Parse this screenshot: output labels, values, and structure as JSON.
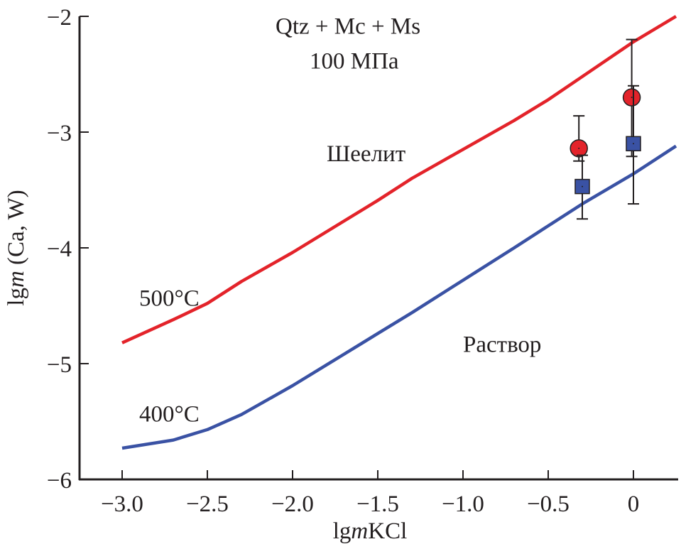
{
  "chart_data": {
    "type": "line",
    "title": "",
    "xlabel_parts": [
      "lg",
      "m",
      "KCl"
    ],
    "ylabel_parts": [
      "lg",
      "m",
      " (Ca, W)"
    ],
    "xlim": [
      -3.25,
      0.25
    ],
    "ylim": [
      -6,
      -2
    ],
    "x_ticks": [
      -3.0,
      -2.5,
      -2.0,
      -1.5,
      -1.0,
      -0.5,
      0
    ],
    "x_tick_labels": [
      "−3.0",
      "−2.5",
      "−2.0",
      "−1.5",
      "−1.0",
      "−0.5",
      "0"
    ],
    "y_ticks": [
      -2,
      -3,
      -4,
      -5,
      -6
    ],
    "y_tick_labels": [
      "−2",
      "−3",
      "−4",
      "−5",
      "−6"
    ],
    "grid": false,
    "series": [
      {
        "name": "500°C",
        "color": "#e3232a",
        "x": [
          -3.0,
          -2.7,
          -2.5,
          -2.3,
          -2.0,
          -1.7,
          -1.5,
          -1.3,
          -1.0,
          -0.7,
          -0.5,
          -0.3,
          0.0,
          0.25
        ],
        "y": [
          -4.82,
          -4.62,
          -4.48,
          -4.29,
          -4.04,
          -3.77,
          -3.59,
          -3.4,
          -3.15,
          -2.9,
          -2.72,
          -2.52,
          -2.22,
          -2.0
        ]
      },
      {
        "name": "400°C",
        "color": "#3a52a4",
        "x": [
          -3.0,
          -2.7,
          -2.5,
          -2.3,
          -2.0,
          -1.7,
          -1.5,
          -1.3,
          -1.0,
          -0.7,
          -0.5,
          -0.3,
          0.0,
          0.25
        ],
        "y": [
          -5.73,
          -5.66,
          -5.57,
          -5.44,
          -5.19,
          -4.92,
          -4.74,
          -4.56,
          -4.28,
          -4.0,
          -3.81,
          -3.62,
          -3.36,
          -3.12
        ]
      }
    ],
    "points": [
      {
        "marker": "circle",
        "color": "#e3232a",
        "x": -0.32,
        "y": -3.14,
        "err_low": -3.25,
        "err_high": -2.86
      },
      {
        "marker": "square",
        "color": "#3a52a4",
        "x": -0.3,
        "y": -3.47,
        "err_low": -3.75,
        "err_high": -3.2
      },
      {
        "marker": "circle",
        "color": "#e3232a",
        "x": -0.01,
        "y": -2.7,
        "err_low": -3.21,
        "err_high": -2.2
      },
      {
        "marker": "square",
        "color": "#3a52a4",
        "x": 0.0,
        "y": -3.1,
        "err_low": -3.62,
        "err_high": -2.6
      }
    ],
    "annotations": [
      {
        "text": "Qtz + Mc + Ms",
        "x": -2.1,
        "y": -2.15
      },
      {
        "text": "100 МПа",
        "x": -1.9,
        "y": -2.45
      },
      {
        "text": "Шеелит",
        "x": -1.8,
        "y": -3.25
      },
      {
        "text": "Раствор",
        "x": -1.0,
        "y": -4.9
      },
      {
        "text": "500°C",
        "x": -2.9,
        "y": -4.5
      },
      {
        "text": "400°C",
        "x": -2.9,
        "y": -5.5
      }
    ]
  }
}
